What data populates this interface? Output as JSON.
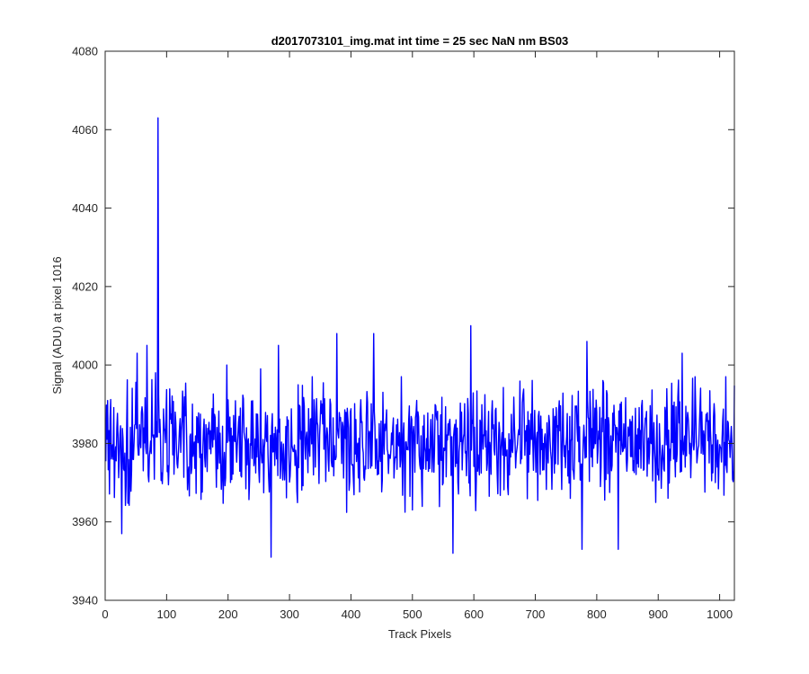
{
  "chart_data": {
    "type": "line",
    "title": "d2017073101_img.mat int time = 25 sec  NaN nm BS03",
    "xlabel": "Track Pixels",
    "ylabel": "Signal (ADU) at pixel 1016",
    "xlim": [
      0,
      1024
    ],
    "ylim": [
      3940,
      4080
    ],
    "xticks": [
      0,
      100,
      200,
      300,
      400,
      500,
      600,
      700,
      800,
      900,
      1000
    ],
    "yticks": [
      3940,
      3960,
      3980,
      4000,
      4020,
      4040,
      4060,
      4080
    ],
    "grid": false,
    "line_color": "#0000ff",
    "series": [
      {
        "x_start": 1,
        "x_step": 1,
        "n_points": 1024,
        "typical_range": [
          3963,
          3995
        ],
        "mean": 3980,
        "spikes": [
          {
            "x": 86,
            "y": 4063
          },
          {
            "x": 27,
            "y": 3957
          },
          {
            "x": 52,
            "y": 4003
          },
          {
            "x": 68,
            "y": 4005
          },
          {
            "x": 82,
            "y": 3998
          },
          {
            "x": 198,
            "y": 4000
          },
          {
            "x": 253,
            "y": 3999
          },
          {
            "x": 270,
            "y": 3951
          },
          {
            "x": 282,
            "y": 4005
          },
          {
            "x": 377,
            "y": 4008
          },
          {
            "x": 437,
            "y": 4008
          },
          {
            "x": 566,
            "y": 3952
          },
          {
            "x": 595,
            "y": 4010
          },
          {
            "x": 776,
            "y": 3953
          },
          {
            "x": 784,
            "y": 4006
          },
          {
            "x": 835,
            "y": 3953
          },
          {
            "x": 939,
            "y": 4003
          }
        ]
      }
    ]
  }
}
